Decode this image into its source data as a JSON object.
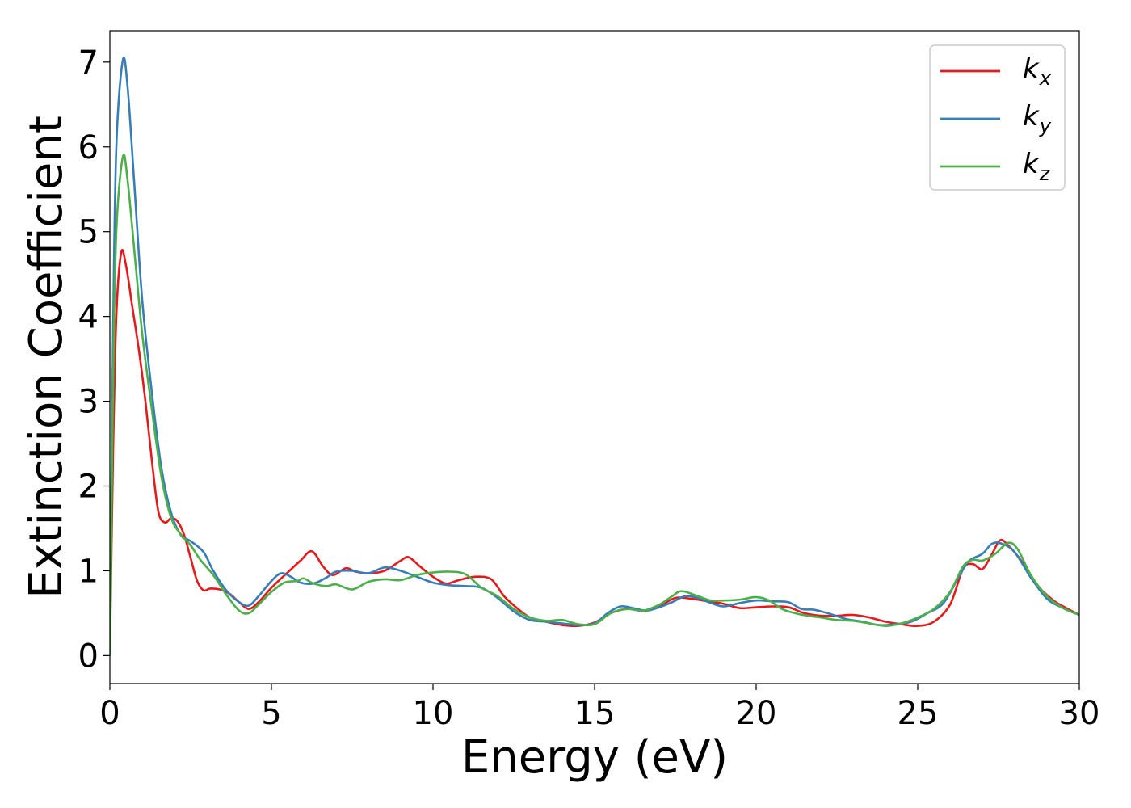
{
  "chart_data": {
    "type": "line",
    "xlabel": "Energy (eV)",
    "ylabel": "Extinction Coefficient",
    "xlim": [
      0,
      30
    ],
    "ylim": [
      -0.33,
      7.37
    ],
    "xticks": [
      "0",
      "5",
      "10",
      "15",
      "20",
      "25",
      "30"
    ],
    "yticks": [
      "0",
      "1",
      "2",
      "3",
      "4",
      "5",
      "6",
      "7"
    ],
    "grid": false,
    "legend_position": "top-right",
    "series": [
      {
        "name": "k",
        "subscript": "x",
        "color": "#e41a1c",
        "points": [
          [
            0,
            0
          ],
          [
            0.1,
            2.4
          ],
          [
            0.2,
            4.0
          ],
          [
            0.35,
            4.75
          ],
          [
            0.5,
            4.6
          ],
          [
            0.7,
            4.1
          ],
          [
            0.9,
            3.6
          ],
          [
            1.1,
            3.0
          ],
          [
            1.3,
            2.3
          ],
          [
            1.5,
            1.7
          ],
          [
            1.7,
            1.57
          ],
          [
            1.9,
            1.62
          ],
          [
            2.1,
            1.58
          ],
          [
            2.3,
            1.42
          ],
          [
            2.5,
            1.15
          ],
          [
            2.7,
            0.88
          ],
          [
            2.9,
            0.77
          ],
          [
            3.1,
            0.79
          ],
          [
            3.4,
            0.78
          ],
          [
            3.7,
            0.73
          ],
          [
            4.0,
            0.63
          ],
          [
            4.3,
            0.55
          ],
          [
            4.6,
            0.63
          ],
          [
            5.0,
            0.8
          ],
          [
            5.5,
            0.98
          ],
          [
            5.9,
            1.12
          ],
          [
            6.25,
            1.23
          ],
          [
            6.6,
            1.05
          ],
          [
            6.9,
            0.95
          ],
          [
            7.3,
            1.03
          ],
          [
            7.6,
            0.99
          ],
          [
            8.0,
            0.97
          ],
          [
            8.5,
            1.0
          ],
          [
            9.0,
            1.12
          ],
          [
            9.25,
            1.16
          ],
          [
            9.6,
            1.05
          ],
          [
            10.0,
            0.93
          ],
          [
            10.4,
            0.85
          ],
          [
            10.8,
            0.89
          ],
          [
            11.3,
            0.93
          ],
          [
            11.8,
            0.9
          ],
          [
            12.2,
            0.7
          ],
          [
            12.6,
            0.56
          ],
          [
            13.0,
            0.45
          ],
          [
            13.5,
            0.4
          ],
          [
            14.0,
            0.36
          ],
          [
            14.5,
            0.35
          ],
          [
            15.0,
            0.39
          ],
          [
            15.5,
            0.5
          ],
          [
            16.0,
            0.55
          ],
          [
            16.5,
            0.53
          ],
          [
            17.0,
            0.58
          ],
          [
            17.5,
            0.68
          ],
          [
            18.0,
            0.67
          ],
          [
            18.5,
            0.64
          ],
          [
            19.0,
            0.61
          ],
          [
            19.5,
            0.56
          ],
          [
            20.0,
            0.57
          ],
          [
            20.5,
            0.58
          ],
          [
            21.0,
            0.57
          ],
          [
            21.5,
            0.5
          ],
          [
            22.0,
            0.47
          ],
          [
            22.5,
            0.47
          ],
          [
            23.0,
            0.48
          ],
          [
            23.5,
            0.45
          ],
          [
            24.0,
            0.4
          ],
          [
            24.5,
            0.37
          ],
          [
            25.0,
            0.35
          ],
          [
            25.5,
            0.4
          ],
          [
            26.0,
            0.6
          ],
          [
            26.4,
            1.02
          ],
          [
            26.7,
            1.08
          ],
          [
            27.0,
            1.02
          ],
          [
            27.3,
            1.2
          ],
          [
            27.55,
            1.36
          ],
          [
            27.8,
            1.3
          ],
          [
            28.2,
            1.12
          ],
          [
            28.7,
            0.83
          ],
          [
            29.2,
            0.65
          ],
          [
            29.6,
            0.56
          ],
          [
            30.0,
            0.48
          ]
        ]
      },
      {
        "name": "k",
        "subscript": "y",
        "color": "#377eb8",
        "points": [
          [
            0,
            0
          ],
          [
            0.1,
            3.8
          ],
          [
            0.2,
            6.0
          ],
          [
            0.4,
            7.02
          ],
          [
            0.55,
            6.7
          ],
          [
            0.75,
            5.6
          ],
          [
            1.0,
            4.2
          ],
          [
            1.3,
            3.1
          ],
          [
            1.6,
            2.2
          ],
          [
            1.9,
            1.68
          ],
          [
            2.2,
            1.42
          ],
          [
            2.5,
            1.35
          ],
          [
            2.9,
            1.22
          ],
          [
            3.2,
            1.0
          ],
          [
            3.6,
            0.77
          ],
          [
            4.0,
            0.63
          ],
          [
            4.3,
            0.59
          ],
          [
            4.6,
            0.7
          ],
          [
            5.0,
            0.88
          ],
          [
            5.3,
            0.97
          ],
          [
            5.6,
            0.93
          ],
          [
            5.9,
            0.86
          ],
          [
            6.3,
            0.85
          ],
          [
            6.7,
            0.92
          ],
          [
            7.0,
            0.99
          ],
          [
            7.5,
            1.0
          ],
          [
            8.0,
            0.97
          ],
          [
            8.5,
            1.04
          ],
          [
            9.0,
            1.0
          ],
          [
            9.5,
            0.93
          ],
          [
            10.0,
            0.86
          ],
          [
            10.5,
            0.83
          ],
          [
            11.0,
            0.82
          ],
          [
            11.5,
            0.8
          ],
          [
            12.0,
            0.68
          ],
          [
            12.5,
            0.52
          ],
          [
            13.0,
            0.42
          ],
          [
            13.5,
            0.4
          ],
          [
            14.0,
            0.38
          ],
          [
            14.5,
            0.36
          ],
          [
            15.0,
            0.38
          ],
          [
            15.4,
            0.5
          ],
          [
            15.8,
            0.58
          ],
          [
            16.2,
            0.56
          ],
          [
            16.6,
            0.53
          ],
          [
            17.0,
            0.57
          ],
          [
            17.4,
            0.63
          ],
          [
            17.8,
            0.7
          ],
          [
            18.2,
            0.68
          ],
          [
            18.6,
            0.62
          ],
          [
            19.0,
            0.58
          ],
          [
            19.5,
            0.62
          ],
          [
            20.0,
            0.65
          ],
          [
            20.5,
            0.64
          ],
          [
            21.0,
            0.63
          ],
          [
            21.4,
            0.55
          ],
          [
            21.8,
            0.54
          ],
          [
            22.3,
            0.49
          ],
          [
            22.8,
            0.43
          ],
          [
            23.3,
            0.4
          ],
          [
            23.8,
            0.36
          ],
          [
            24.3,
            0.37
          ],
          [
            24.8,
            0.4
          ],
          [
            25.3,
            0.5
          ],
          [
            25.8,
            0.62
          ],
          [
            26.3,
            0.95
          ],
          [
            26.6,
            1.12
          ],
          [
            27.0,
            1.2
          ],
          [
            27.3,
            1.32
          ],
          [
            27.6,
            1.32
          ],
          [
            28.0,
            1.22
          ],
          [
            28.5,
            0.92
          ],
          [
            29.0,
            0.67
          ],
          [
            29.5,
            0.56
          ],
          [
            30.0,
            0.48
          ]
        ]
      },
      {
        "name": "k",
        "subscript": "z",
        "color": "#4daf4a",
        "points": [
          [
            0,
            0
          ],
          [
            0.1,
            3.2
          ],
          [
            0.2,
            5.0
          ],
          [
            0.4,
            5.88
          ],
          [
            0.55,
            5.6
          ],
          [
            0.8,
            4.6
          ],
          [
            1.0,
            3.8
          ],
          [
            1.3,
            2.9
          ],
          [
            1.6,
            2.1
          ],
          [
            1.9,
            1.62
          ],
          [
            2.2,
            1.43
          ],
          [
            2.5,
            1.3
          ],
          [
            2.8,
            1.13
          ],
          [
            3.2,
            0.95
          ],
          [
            3.6,
            0.72
          ],
          [
            4.0,
            0.53
          ],
          [
            4.3,
            0.5
          ],
          [
            4.6,
            0.6
          ],
          [
            5.0,
            0.75
          ],
          [
            5.4,
            0.86
          ],
          [
            5.8,
            0.88
          ],
          [
            6.0,
            0.91
          ],
          [
            6.3,
            0.85
          ],
          [
            6.7,
            0.82
          ],
          [
            7.0,
            0.84
          ],
          [
            7.5,
            0.78
          ],
          [
            8.0,
            0.87
          ],
          [
            8.5,
            0.9
          ],
          [
            9.0,
            0.89
          ],
          [
            9.5,
            0.95
          ],
          [
            10.0,
            0.98
          ],
          [
            10.5,
            0.99
          ],
          [
            11.0,
            0.96
          ],
          [
            11.5,
            0.8
          ],
          [
            12.0,
            0.7
          ],
          [
            12.5,
            0.55
          ],
          [
            13.0,
            0.45
          ],
          [
            13.5,
            0.41
          ],
          [
            14.0,
            0.42
          ],
          [
            14.5,
            0.37
          ],
          [
            15.0,
            0.37
          ],
          [
            15.5,
            0.5
          ],
          [
            16.0,
            0.55
          ],
          [
            16.5,
            0.53
          ],
          [
            17.0,
            0.6
          ],
          [
            17.4,
            0.7
          ],
          [
            17.7,
            0.76
          ],
          [
            18.2,
            0.7
          ],
          [
            18.6,
            0.65
          ],
          [
            19.0,
            0.65
          ],
          [
            19.5,
            0.66
          ],
          [
            20.0,
            0.69
          ],
          [
            20.4,
            0.65
          ],
          [
            20.8,
            0.55
          ],
          [
            21.2,
            0.5
          ],
          [
            21.6,
            0.47
          ],
          [
            22.0,
            0.45
          ],
          [
            22.5,
            0.42
          ],
          [
            23.0,
            0.41
          ],
          [
            23.5,
            0.38
          ],
          [
            24.0,
            0.35
          ],
          [
            24.5,
            0.38
          ],
          [
            25.0,
            0.45
          ],
          [
            25.5,
            0.55
          ],
          [
            26.0,
            0.75
          ],
          [
            26.4,
            1.05
          ],
          [
            26.7,
            1.13
          ],
          [
            27.0,
            1.12
          ],
          [
            27.4,
            1.2
          ],
          [
            27.8,
            1.33
          ],
          [
            28.1,
            1.25
          ],
          [
            28.5,
            0.95
          ],
          [
            29.0,
            0.7
          ],
          [
            29.5,
            0.56
          ],
          [
            30.0,
            0.48
          ]
        ]
      }
    ]
  }
}
